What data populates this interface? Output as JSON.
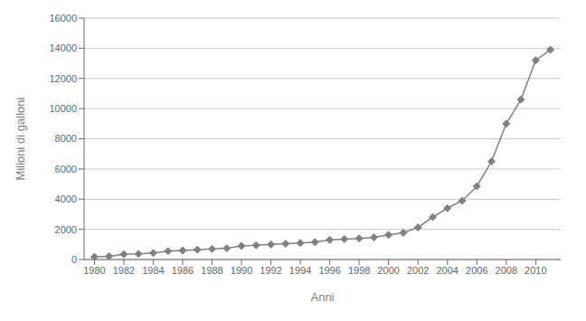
{
  "chart_data": {
    "type": "line",
    "x": [
      1980,
      1981,
      1982,
      1983,
      1984,
      1985,
      1986,
      1987,
      1988,
      1989,
      1990,
      1991,
      1992,
      1993,
      1994,
      1995,
      1996,
      1997,
      1998,
      1999,
      2000,
      2001,
      2002,
      2003,
      2004,
      2005,
      2006,
      2007,
      2008,
      2009,
      2010,
      2011
    ],
    "values": [
      175,
      215,
      350,
      375,
      430,
      550,
      600,
      650,
      700,
      750,
      900,
      950,
      1000,
      1050,
      1100,
      1150,
      1300,
      1350,
      1400,
      1475,
      1630,
      1770,
      2130,
      2810,
      3400,
      3900,
      4855,
      6500,
      9000,
      10600,
      13200,
      13900
    ],
    "color": "#808080",
    "marker": "diamond",
    "xlabel": "Anni",
    "ylabel": "Milioni di galloni",
    "xlim": [
      1979.3,
      2011.7
    ],
    "xticks": [
      1980,
      1982,
      1984,
      1986,
      1988,
      1990,
      1992,
      1994,
      1996,
      1998,
      2000,
      2002,
      2004,
      2006,
      2008,
      2010
    ],
    "ylim": [
      0,
      16000
    ],
    "yticks": [
      0,
      2000,
      4000,
      6000,
      8000,
      10000,
      12000,
      14000,
      16000
    ],
    "grid": true
  }
}
